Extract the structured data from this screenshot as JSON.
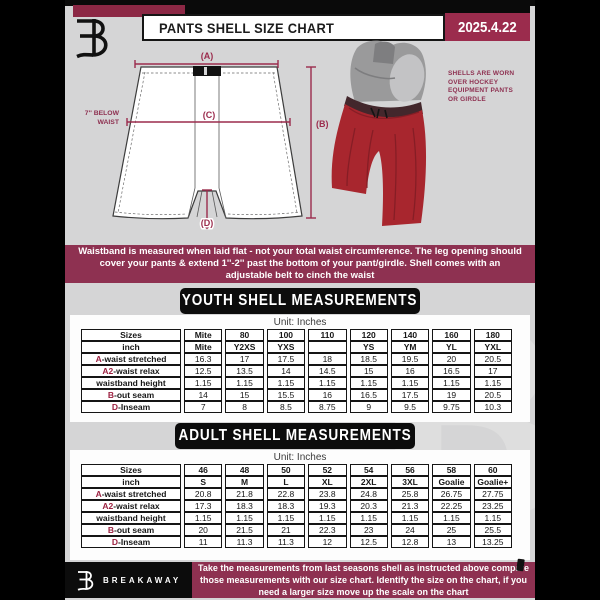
{
  "header": {
    "title": "PANTS SHELL SIZE CHART",
    "date": "2025.4.22"
  },
  "colors": {
    "maroon": "#8E3151",
    "date_maroon": "#9B2C4D",
    "measure_line": "#9B2C4D",
    "table_prefix_red": "#9B2040",
    "shell_red": "#A8262E",
    "banner_black": "#0C0C0C"
  },
  "diagram": {
    "label_a": "(A)",
    "label_b": "(B)",
    "label_c": "(C)",
    "label_d": "(D)",
    "waist_note_line1": "7'' BELOW",
    "waist_note_line2": "WAIST"
  },
  "photo_note": {
    "lines": [
      "SHELLS ARE WORN",
      "OVER HOCKEY",
      "EQUIPMENT PANTS",
      "OR GIRDLE"
    ]
  },
  "info_banner": "Waistband is measured when laid flat - not your total waist circumference. The leg opening should cover your pants & extend 1''-2'' past the bottom of your pant/girdle. Shell comes with an adjustable belt to cinch the waist",
  "youth": {
    "banner": "YOUTH SHELL MEASUREMENTS",
    "unit": "Unit: Inches",
    "rows": [
      {
        "prefix": "",
        "label": "Sizes",
        "bold": true,
        "cells": [
          "Mite",
          "80",
          "100",
          "110",
          "120",
          "140",
          "160",
          "180"
        ]
      },
      {
        "prefix": "",
        "label": "inch",
        "bold": true,
        "cells": [
          "Mite",
          "Y2XS",
          "YXS",
          "",
          "YS",
          "YM",
          "YL",
          "YXL"
        ]
      },
      {
        "prefix": "A",
        "label": "-waist stretched",
        "cells": [
          "16.3",
          "17",
          "17.5",
          "18",
          "18.5",
          "19.5",
          "20",
          "20.5"
        ]
      },
      {
        "prefix": "A2",
        "label": "-waist relax",
        "cells": [
          "12.5",
          "13.5",
          "14",
          "14.5",
          "15",
          "16",
          "16.5",
          "17"
        ]
      },
      {
        "prefix": "",
        "label": "waistband height",
        "cells": [
          "1.15",
          "1.15",
          "1.15",
          "1.15",
          "1.15",
          "1.15",
          "1.15",
          "1.15"
        ]
      },
      {
        "prefix": "B",
        "label": "-out seam",
        "cells": [
          "14",
          "15",
          "15.5",
          "16",
          "16.5",
          "17.5",
          "19",
          "20.5"
        ]
      },
      {
        "prefix": "D",
        "label": "-Inseam",
        "cells": [
          "7",
          "8",
          "8.5",
          "8.75",
          "9",
          "9.5",
          "9.75",
          "10.3"
        ]
      }
    ]
  },
  "adult": {
    "banner": "ADULT SHELL MEASUREMENTS",
    "unit": "Unit: Inches",
    "rows": [
      {
        "prefix": "",
        "label": "Sizes",
        "bold": true,
        "cells": [
          "46",
          "48",
          "50",
          "52",
          "54",
          "56",
          "58",
          "60"
        ]
      },
      {
        "prefix": "",
        "label": "inch",
        "bold": true,
        "cells": [
          "S",
          "M",
          "L",
          "XL",
          "2XL",
          "3XL",
          "Goalie",
          "Goalie+"
        ]
      },
      {
        "prefix": "A",
        "label": "-waist stretched",
        "cells": [
          "20.8",
          "21.8",
          "22.8",
          "23.8",
          "24.8",
          "25.8",
          "26.75",
          "27.75"
        ]
      },
      {
        "prefix": "A2",
        "label": "-waist relax",
        "cells": [
          "17.3",
          "18.3",
          "18.3",
          "19.3",
          "20.3",
          "21.3",
          "22.25",
          "23.25"
        ]
      },
      {
        "prefix": "",
        "label": "waistband height",
        "cells": [
          "1.15",
          "1.15",
          "1.15",
          "1.15",
          "1.15",
          "1.15",
          "1.15",
          "1.15"
        ]
      },
      {
        "prefix": "B",
        "label": "-out seam",
        "cells": [
          "20",
          "21.5",
          "21",
          "22.3",
          "23",
          "24",
          "25",
          "25.5"
        ]
      },
      {
        "prefix": "D",
        "label": "-Inseam",
        "cells": [
          "11",
          "11.3",
          "11.3",
          "12",
          "12.5",
          "12.8",
          "13",
          "13.25"
        ]
      }
    ]
  },
  "footer": {
    "brand": "BREAKAWAY",
    "note": "Take the measurements from last seasons shell as instructed above compare those measurements  with our size chart. Identify the size on the chart, if you need a larger size move up the scale on the chart"
  }
}
